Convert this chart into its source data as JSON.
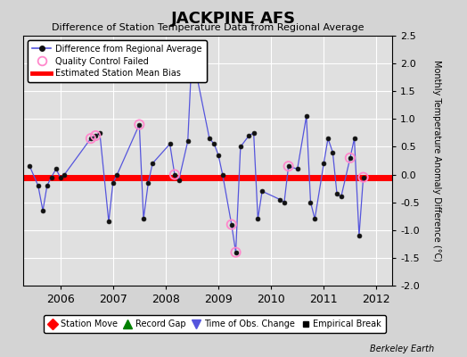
{
  "title": "JACKPINE AFS",
  "subtitle": "Difference of Station Temperature Data from Regional Average",
  "ylabel": "Monthly Temperature Anomaly Difference (°C)",
  "credit": "Berkeley Earth",
  "ylim": [
    -2.0,
    2.5
  ],
  "xlim": [
    2005.3,
    2012.3
  ],
  "xticks": [
    2006,
    2007,
    2008,
    2009,
    2010,
    2011,
    2012
  ],
  "yticks": [
    -2.0,
    -1.5,
    -1.0,
    -0.5,
    0.0,
    0.5,
    1.0,
    1.5,
    2.0,
    2.5
  ],
  "bias_value": -0.05,
  "bias_color": "#ff0000",
  "line_color": "#5555dd",
  "marker_color": "#111111",
  "qc_color": "#ff88cc",
  "fig_bg_color": "#d4d4d4",
  "plot_bg_color": "#e0e0e0",
  "time_series_x": [
    2005.42,
    2005.58,
    2005.67,
    2005.75,
    2005.83,
    2005.92,
    2006.0,
    2006.08,
    2006.58,
    2006.67,
    2006.75,
    2006.92,
    2007.0,
    2007.08,
    2007.5,
    2007.58,
    2007.67,
    2007.75,
    2008.08,
    2008.17,
    2008.25,
    2008.42,
    2008.5,
    2008.83,
    2008.92,
    2009.0,
    2009.08,
    2009.25,
    2009.33,
    2009.42,
    2009.58,
    2009.67,
    2009.75,
    2009.83,
    2010.17,
    2010.25,
    2010.33,
    2010.5,
    2010.67,
    2010.75,
    2010.83,
    2011.0,
    2011.08,
    2011.17,
    2011.25,
    2011.33,
    2011.5,
    2011.58,
    2011.67,
    2011.75
  ],
  "time_series_y": [
    0.15,
    -0.2,
    -0.65,
    -0.2,
    -0.05,
    0.1,
    -0.05,
    0.0,
    0.65,
    0.7,
    0.75,
    -0.85,
    -0.15,
    0.0,
    0.9,
    -0.8,
    -0.15,
    0.2,
    0.55,
    0.0,
    -0.1,
    0.6,
    2.2,
    0.65,
    0.55,
    0.35,
    0.0,
    -0.9,
    -1.4,
    0.5,
    0.7,
    0.75,
    -0.8,
    -0.3,
    -0.45,
    -0.5,
    0.15,
    0.1,
    1.05,
    -0.5,
    -0.8,
    0.2,
    0.65,
    0.4,
    -0.35,
    -0.4,
    0.3,
    0.65,
    -1.1,
    -0.05
  ],
  "qc_failed_x": [
    2006.58,
    2006.67,
    2007.5,
    2008.17,
    2008.5,
    2009.25,
    2009.33,
    2010.33,
    2011.5,
    2011.75
  ],
  "qc_failed_y": [
    0.65,
    0.7,
    0.9,
    0.0,
    2.2,
    -0.9,
    -1.4,
    0.15,
    0.3,
    -0.05
  ]
}
